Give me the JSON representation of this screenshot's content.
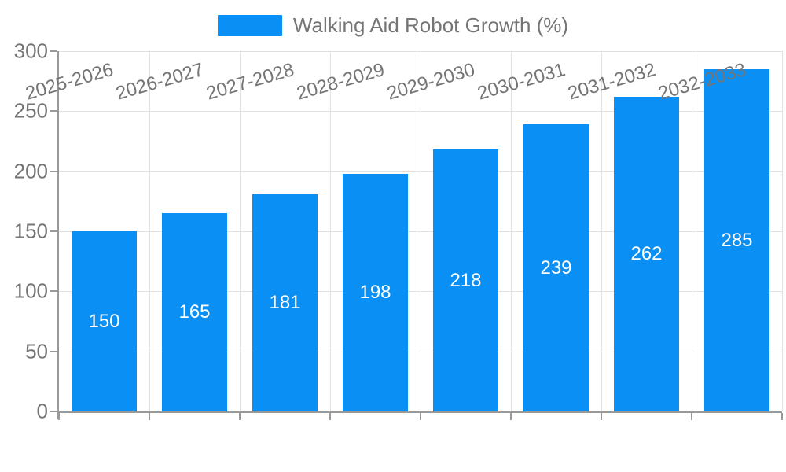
{
  "legend": {
    "label": "Walking Aid Robot Growth (%)"
  },
  "chart_data": {
    "type": "bar",
    "title": "Walking Aid Robot Growth (%)",
    "series_name": "Walking Aid Robot Growth (%)",
    "categories": [
      "2025-2026",
      "2026-2027",
      "2027-2028",
      "2028-2029",
      "2029-2030",
      "2030-2031",
      "2031-2032",
      "2032-2033"
    ],
    "values": [
      150,
      165,
      181,
      198,
      218,
      239,
      262,
      285
    ],
    "xlabel": "",
    "ylabel": "",
    "ylim": [
      0,
      300
    ],
    "yticks": [
      0,
      50,
      100,
      150,
      200,
      250,
      300
    ],
    "grid": true,
    "legend_position": "top-center",
    "x_label_rotation_deg": -16,
    "colors": {
      "bar": "#0A90F4",
      "bar_label": "#FFFFFF",
      "axis_text": "#757575",
      "axis_line": "#999999",
      "gridline": "#E2E2E2"
    }
  }
}
